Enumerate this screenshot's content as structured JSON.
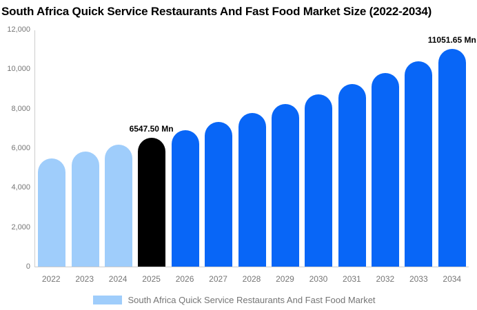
{
  "header": {
    "title": "South Africa Quick Service Restaurants And Fast Food Market Size (2022-2034)"
  },
  "colors": {
    "historical_bar": "#9FCDFB",
    "current_bar": "#000000",
    "forecast_bar": "#0866F7",
    "axis_line": "#CCCCCC",
    "tick_text": "#757575",
    "annotation_text": "#000000",
    "title_text": "#000000",
    "legend_text": "#757575",
    "background": "#FFFFFF"
  },
  "chart_data": {
    "type": "bar",
    "title": "South Africa Quick Service Restaurants And Fast Food Market Size (2022-2034)",
    "categories": [
      "2022",
      "2023",
      "2024",
      "2025",
      "2026",
      "2027",
      "2028",
      "2029",
      "2030",
      "2031",
      "2032",
      "2033",
      "2034"
    ],
    "values": [
      5499,
      5829,
      6178,
      6547.5,
      6940,
      7355,
      7796,
      8262,
      8757,
      9282,
      9838,
      10427,
      11051.65
    ],
    "unit": "Mn",
    "bar_colors": [
      "#9FCDFB",
      "#9FCDFB",
      "#9FCDFB",
      "#000000",
      "#0866F7",
      "#0866F7",
      "#0866F7",
      "#0866F7",
      "#0866F7",
      "#0866F7",
      "#0866F7",
      "#0866F7",
      "#0866F7"
    ],
    "annotations": [
      {
        "index": 3,
        "text": "6547.50 Mn"
      },
      {
        "index": 12,
        "text": "11051.65 Mn"
      }
    ],
    "xlabel": "",
    "ylabel": "",
    "ylim": [
      0,
      12000
    ],
    "ytick_labels": [
      "0",
      "2,000",
      "4,000",
      "6,000",
      "8,000",
      "10,000",
      "12,000"
    ],
    "ytick_values": [
      0,
      2000,
      4000,
      6000,
      8000,
      10000,
      12000
    ],
    "grid": false,
    "legend": {
      "position": "bottom",
      "label": "South Africa Quick Service Restaurants And Fast Food Market",
      "swatch_color": "#9FCDFB"
    }
  }
}
